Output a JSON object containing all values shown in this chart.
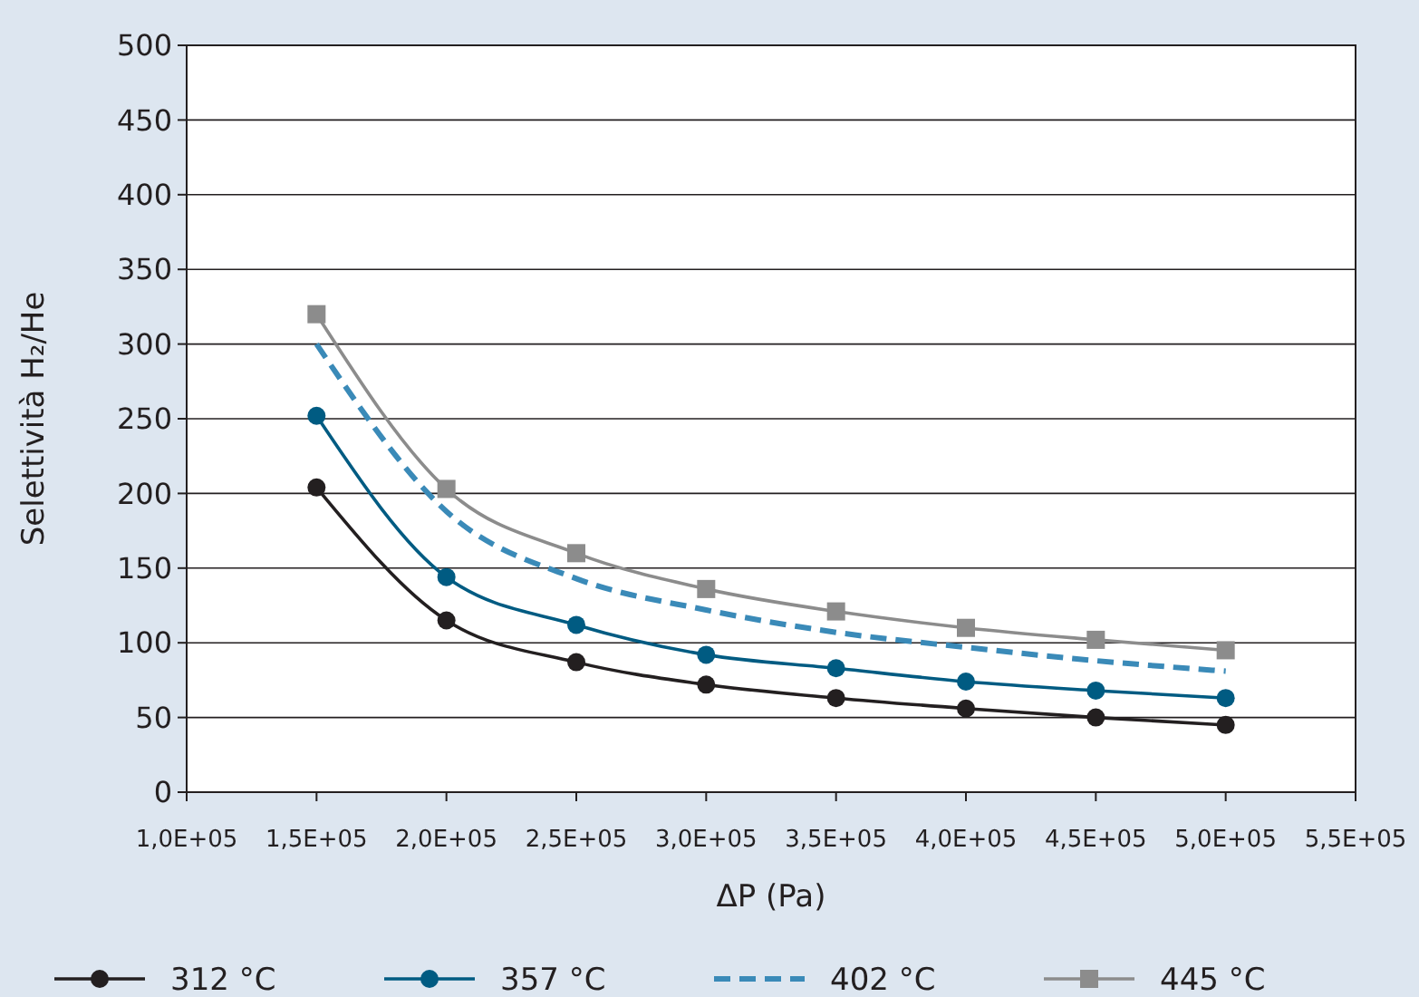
{
  "chart_data": {
    "type": "line",
    "xlabel": "ΔP (Pa)",
    "ylabel": "Selettività H₂/He",
    "ylim": [
      0,
      500
    ],
    "yticks": [
      0,
      50,
      100,
      150,
      200,
      250,
      300,
      350,
      400,
      450,
      500
    ],
    "grid": "y",
    "legend": "bottom",
    "categories": [
      "1,0E+05",
      "1,5E+05",
      "2,0E+05",
      "2,5E+05",
      "3,0E+05",
      "3,5E+05",
      "4,0E+05",
      "4,5E+05",
      "5,0E+05",
      "5,5E+05"
    ],
    "series": [
      {
        "name": "312 °C",
        "color": "#231f20",
        "marker": "circle",
        "line_style": "solid",
        "values": [
          null,
          204,
          115,
          87,
          72,
          63,
          56,
          50,
          45,
          null
        ]
      },
      {
        "name": "357 °C",
        "color": "#005b82",
        "marker": "circle",
        "line_style": "solid",
        "values": [
          null,
          252,
          144,
          112,
          92,
          83,
          74,
          68,
          63,
          null
        ]
      },
      {
        "name": "402 °C",
        "color": "#3a8ab8",
        "marker": "none",
        "line_style": "dashed",
        "values": [
          null,
          300,
          188,
          143,
          122,
          107,
          97,
          88,
          81,
          null
        ]
      },
      {
        "name": "445 °C",
        "color": "#8c8c8c",
        "marker": "square",
        "line_style": "solid",
        "values": [
          null,
          320,
          203,
          160,
          136,
          121,
          110,
          102,
          95,
          null
        ]
      }
    ]
  }
}
